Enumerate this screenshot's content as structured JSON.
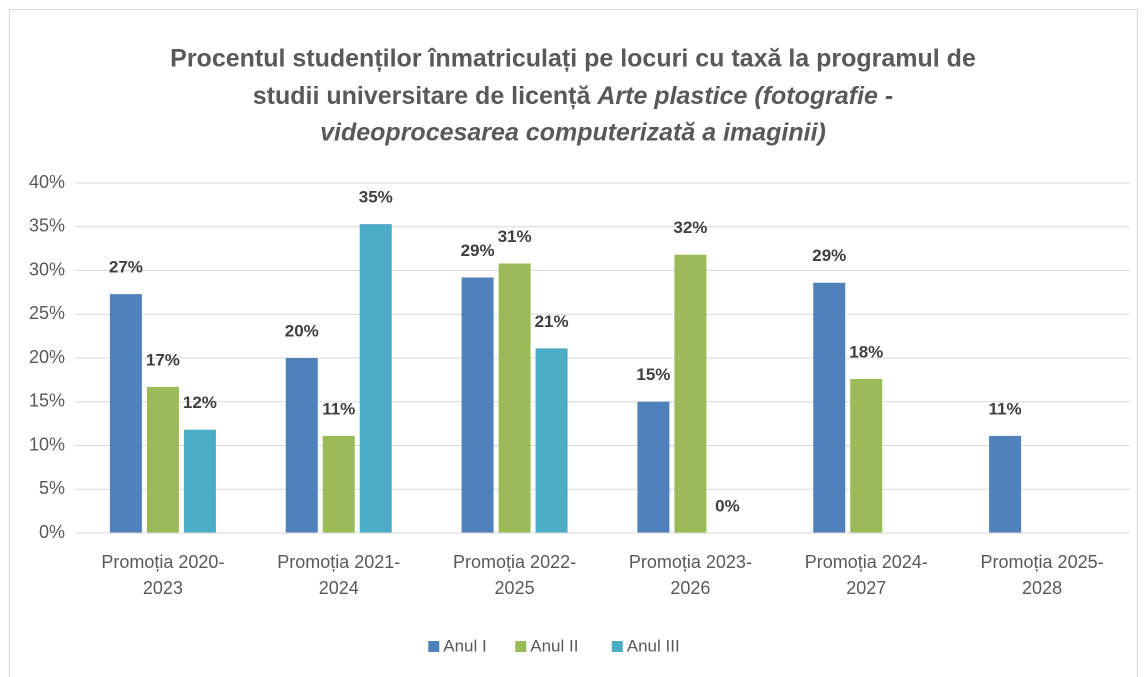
{
  "chart_data": {
    "type": "bar",
    "title": [
      "Procentul studenților înmatriculați pe locuri cu taxă la programul de",
      "studii universitare de licență",
      "Arte plastice (fotografie -",
      "videoprocesarea computerizată a imaginii)"
    ],
    "categories": [
      "Promoția 2020-2023",
      "Promoția 2021-2024",
      "Promoția 2022-2025",
      "Promoția 2023-2026",
      "Promoția 2024-2027",
      "Promoția 2025-2028"
    ],
    "series": [
      {
        "name": "Anul I",
        "color": "#4f81bd",
        "values": [
          27.3,
          20,
          29.2,
          15,
          28.6,
          11.1
        ],
        "value_labels": [
          "27%",
          "20%",
          "29%",
          "15%",
          "29%",
          "11%"
        ]
      },
      {
        "name": "Anul II",
        "color": "#9bbb59",
        "values": [
          16.7,
          11.1,
          30.8,
          31.8,
          17.6,
          null
        ],
        "value_labels": [
          "17%",
          "11%",
          "31%",
          "32%",
          "18%",
          null
        ]
      },
      {
        "name": "Anul III",
        "color": "#4bacc6",
        "values": [
          11.8,
          35.3,
          21.1,
          0,
          null,
          null
        ],
        "value_labels": [
          "12%",
          "35%",
          "21%",
          "0%",
          null,
          null
        ]
      }
    ],
    "ylim": [
      0,
      40
    ],
    "yticks": [
      {
        "value": 0,
        "label": "0%"
      },
      {
        "value": 5,
        "label": "5%"
      },
      {
        "value": 10,
        "label": "10%"
      },
      {
        "value": 15,
        "label": "15%"
      },
      {
        "value": 20,
        "label": "20%"
      },
      {
        "value": 25,
        "label": "25%"
      },
      {
        "value": 30,
        "label": "30%"
      },
      {
        "value": 35,
        "label": "35%"
      },
      {
        "value": 40,
        "label": "40%"
      }
    ],
    "grid": true,
    "legend": "bottom"
  }
}
